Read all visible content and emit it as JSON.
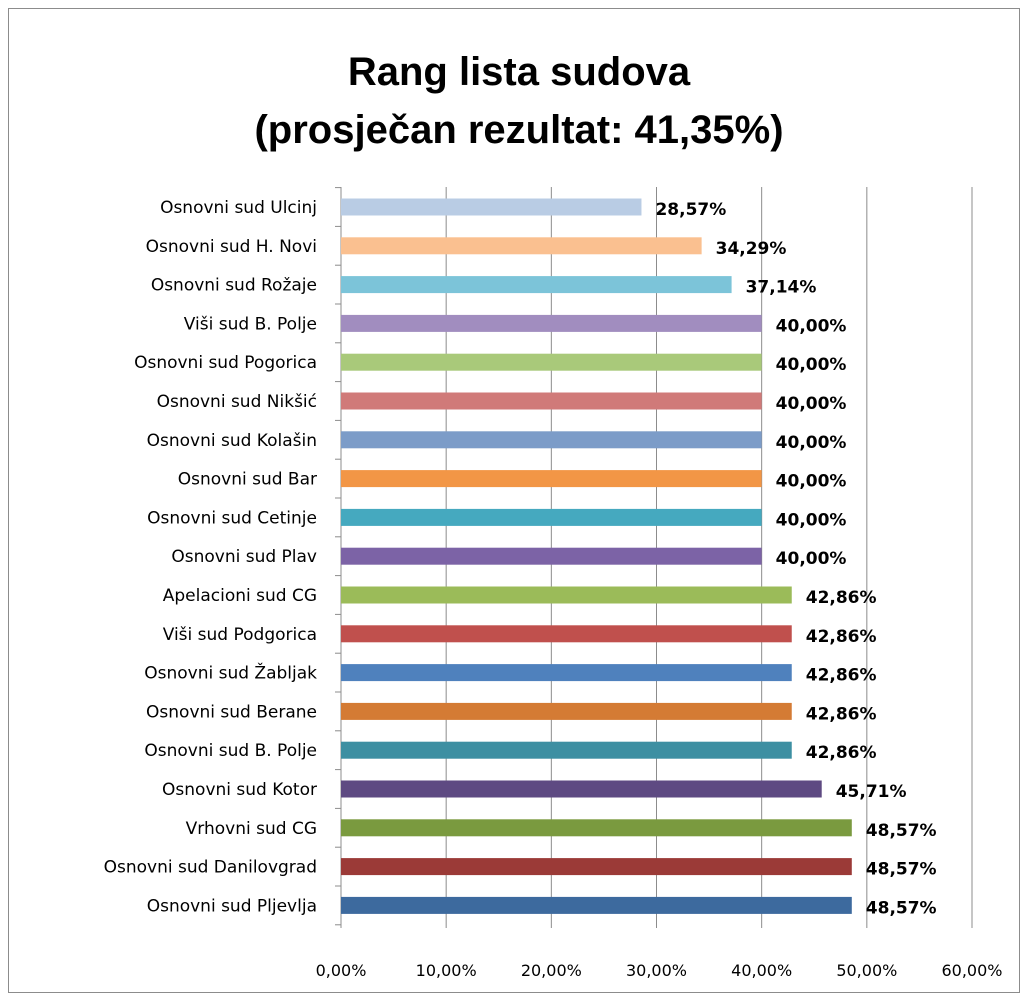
{
  "chart_data": {
    "type": "bar",
    "orientation": "horizontal",
    "title": "Rang lista sudova",
    "subtitle": "(prosječan rezultat: 41,35%)",
    "categories": [
      "Osnovni sud Ulcinj",
      "Osnovni sud H. Novi",
      "Osnovni sud Rožaje",
      "Viši sud B. Polje",
      "Osnovni sud Pogorica",
      "Osnovni sud Nikšić",
      "Osnovni sud Kolašin",
      "Osnovni sud Bar",
      "Osnovni sud Cetinje",
      "Osnovni sud Plav",
      "Apelacioni sud CG",
      "Viši sud Podgorica",
      "Osnovni sud Žabljak",
      "Osnovni sud Berane",
      "Osnovni sud B. Polje",
      "Osnovni sud Kotor",
      "Vrhovni sud CG",
      "Osnovni sud Danilovgrad",
      "Osnovni sud Pljevlja"
    ],
    "values": [
      28.57,
      34.29,
      37.14,
      40.0,
      40.0,
      40.0,
      40.0,
      40.0,
      40.0,
      40.0,
      42.86,
      42.86,
      42.86,
      42.86,
      42.86,
      45.71,
      48.57,
      48.57,
      48.57
    ],
    "data_labels": [
      "28,57%",
      "34,29%",
      "37,14%",
      "40,00%",
      "40,00%",
      "40,00%",
      "40,00%",
      "40,00%",
      "40,00%",
      "40,00%",
      "42,86%",
      "42,86%",
      "42,86%",
      "42,86%",
      "42,86%",
      "45,71%",
      "48,57%",
      "48,57%",
      "48,57%"
    ],
    "colors": [
      "#b9cce4",
      "#fac090",
      "#7cc4d9",
      "#a18dbf",
      "#a9c97a",
      "#d07a79",
      "#7c9cc8",
      "#f29646",
      "#45a9bf",
      "#7c63a6",
      "#9bbb59",
      "#c0504d",
      "#4f81bd",
      "#d47b34",
      "#3d8fa2",
      "#5e4a82",
      "#7a9a3f",
      "#9b3a37",
      "#3d6a9e"
    ],
    "xaxis": {
      "min": 0,
      "max": 60,
      "tick_values": [
        0,
        10,
        20,
        30,
        40,
        50,
        60
      ],
      "tick_labels": [
        "0,00%",
        "10,00%",
        "20,00%",
        "30,00%",
        "40,00%",
        "50,00%",
        "60,00%"
      ]
    },
    "xlabel": "",
    "ylabel": "",
    "grid": "vertical",
    "legend": "none"
  }
}
